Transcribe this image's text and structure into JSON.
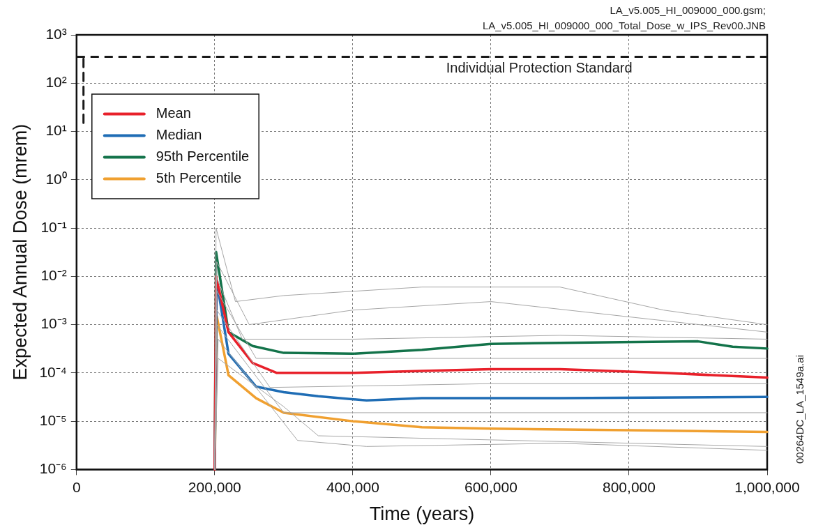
{
  "chart_data": {
    "type": "line",
    "xlabel": "Time (years)",
    "ylabel": "Expected Annual Dose (mrem)",
    "annotations": [
      "LA_v5.005_HI_009000_000.gsm;",
      "LA_v5.005_HI_009000_000_Total_Dose_w_IPS_Rev00.JNB",
      "00264DC_LA_1549a.ai"
    ],
    "xlim": [
      0,
      1000000
    ],
    "ylim": [
      1e-06,
      1000
    ],
    "xticks": [
      0,
      {
        "value": 200000,
        "label": "200,000"
      },
      {
        "value": 400000,
        "label": "400,000"
      },
      {
        "value": 600000,
        "label": "600,000"
      },
      {
        "value": 800000,
        "label": "800,000"
      },
      {
        "value": 1000000,
        "label": "1,000,000"
      }
    ],
    "yticks": [
      {
        "value": 1e-06,
        "label": "10⁻⁶"
      },
      {
        "value": 1e-05,
        "label": "10⁻⁵"
      },
      {
        "value": 0.0001,
        "label": "10⁻⁴"
      },
      {
        "value": 0.001,
        "label": "10⁻³"
      },
      {
        "value": 0.01,
        "label": "10⁻²"
      },
      {
        "value": 0.1,
        "label": "10⁻¹"
      },
      {
        "value": 1,
        "label": "10⁰"
      },
      {
        "value": 10,
        "label": "10¹"
      },
      {
        "value": 100,
        "label": "10²"
      },
      {
        "value": 1000,
        "label": "10³"
      }
    ],
    "ref_lines": [
      {
        "axis": "y",
        "value": 350,
        "label": "Individual Protection Standard",
        "color": "#1a1a1a",
        "line_style": "dashed"
      }
    ],
    "log": "y",
    "grid": true,
    "legend": "top left",
    "series": [
      {
        "color": "#a6a6a6",
        "x": [
          200000,
          202000,
          230000,
          300000,
          500000,
          700000,
          850000,
          1000000
        ],
        "values": [
          1e-06,
          0.1,
          0.003,
          0.004,
          0.006,
          0.006,
          0.002,
          0.001
        ]
      },
      {
        "color": "#a6a6a6",
        "x": [
          200000,
          203000,
          250000,
          400000,
          600000,
          1000000
        ],
        "values": [
          1e-06,
          0.02,
          0.001,
          0.002,
          0.003,
          0.0007
        ]
      },
      {
        "color": "#a6a6a6",
        "x": [
          200000,
          202000,
          240000,
          400000,
          700000,
          1000000
        ],
        "values": [
          1e-06,
          0.01,
          0.0005,
          0.0005,
          0.0006,
          0.0005
        ]
      },
      {
        "color": "#a6a6a6",
        "x": [
          200000,
          203000,
          260000,
          600000,
          1000000
        ],
        "values": [
          1e-06,
          0.005,
          0.0002,
          0.0002,
          0.0002
        ]
      },
      {
        "color": "#a6a6a6",
        "x": [
          200000,
          203000,
          280000,
          600000,
          1000000
        ],
        "values": [
          1e-06,
          0.002,
          5e-05,
          6e-05,
          6e-05
        ]
      },
      {
        "color": "#a6a6a6",
        "x": [
          200000,
          203000,
          300000,
          600000,
          1000000
        ],
        "values": [
          1e-06,
          0.001,
          1.5e-05,
          1.5e-05,
          1.5e-05
        ]
      },
      {
        "color": "#a6a6a6",
        "x": [
          200000,
          205000,
          320000,
          420000,
          700000,
          1000000
        ],
        "values": [
          1e-06,
          0.0005,
          4e-06,
          3e-06,
          3.5e-06,
          2.5e-06
        ]
      },
      {
        "color": "#a6a6a6",
        "x": [
          200000,
          205000,
          300000,
          350000,
          1000000
        ],
        "values": [
          1e-06,
          0.0002,
          2e-05,
          5e-06,
          3e-06
        ]
      },
      {
        "color": "#1a1a1a",
        "line_style": "dashed",
        "x": [
          10000,
          10000
        ],
        "values": [
          15,
          350
        ]
      },
      {
        "name": "Mean",
        "color": "#e8202a",
        "x": [
          200000,
          202000,
          220000,
          255000,
          290000,
          400000,
          500000,
          600000,
          700000,
          850000,
          1000000
        ],
        "values": [
          1e-06,
          0.01,
          0.0007,
          0.00016,
          0.0001,
          0.0001,
          0.00011,
          0.00012,
          0.00012,
          0.0001,
          8e-05
        ]
      },
      {
        "name": "Median",
        "color": "#1f6db5",
        "x": [
          200000,
          203000,
          220000,
          260000,
          300000,
          350000,
          420000,
          500000,
          700000,
          1000000
        ],
        "values": [
          1e-06,
          0.008,
          0.00025,
          5.2e-05,
          4e-05,
          3.3e-05,
          2.7e-05,
          3e-05,
          3e-05,
          3.2e-05
        ]
      },
      {
        "name": "95th Percentile",
        "color": "#13734a",
        "x": [
          200000,
          202000,
          220000,
          255000,
          300000,
          400000,
          500000,
          600000,
          700000,
          900000,
          950000,
          1000000
        ],
        "values": [
          1e-06,
          0.032,
          0.0007,
          0.00036,
          0.00026,
          0.00025,
          0.0003,
          0.0004,
          0.00042,
          0.00045,
          0.00035,
          0.00032
        ]
      },
      {
        "name": "5th Percentile",
        "color": "#f0a030",
        "x": [
          200000,
          203000,
          220000,
          260000,
          300000,
          400000,
          500000,
          600000,
          800000,
          1000000
        ],
        "values": [
          1e-06,
          0.0015,
          9e-05,
          3e-05,
          1.5e-05,
          1e-05,
          7.5e-06,
          7e-06,
          6.5e-06,
          6e-06
        ]
      }
    ]
  }
}
